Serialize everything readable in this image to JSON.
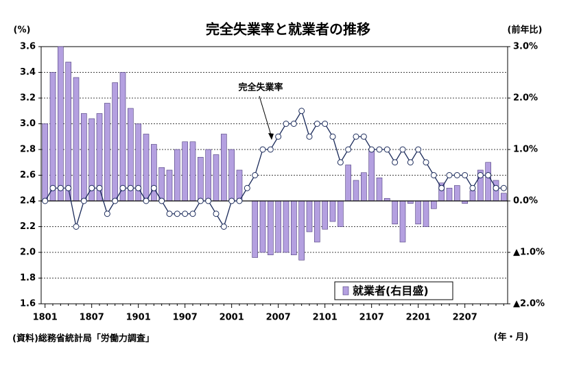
{
  "chart_data": {
    "type": "bar-line",
    "title": "完全失業率と就業者の推移",
    "ylabel": "(%)",
    "y2label": "(前年比)",
    "xlabel": "(年・月)",
    "source": "(資料)総務省統計局「労働力調査」",
    "categories": [
      "1801",
      null,
      null,
      null,
      null,
      null,
      "1807",
      null,
      null,
      null,
      null,
      null,
      "1901",
      null,
      null,
      null,
      null,
      null,
      "1907",
      null,
      null,
      null,
      null,
      null,
      "2001",
      null,
      null,
      null,
      null,
      null,
      "2007",
      null,
      null,
      null,
      null,
      null,
      "2101",
      null,
      null,
      null,
      null,
      null,
      "2107",
      null,
      null,
      null,
      null,
      null,
      "2201",
      null,
      null,
      null,
      null,
      null,
      "2207",
      null,
      null,
      null,
      null,
      null
    ],
    "series": [
      {
        "name": "就業者(右目盛)",
        "type": "bar",
        "axis": "y2",
        "color": "#b4a0e0",
        "values": [
          1.5,
          2.5,
          3.0,
          2.7,
          2.4,
          1.7,
          1.6,
          1.7,
          1.9,
          2.3,
          2.5,
          1.8,
          1.5,
          1.3,
          1.1,
          0.65,
          0.6,
          1.0,
          1.15,
          1.15,
          0.85,
          1.0,
          0.9,
          1.3,
          1.0,
          0.6,
          0,
          -1.1,
          -1.0,
          -1.05,
          -1.0,
          -1.0,
          -1.05,
          -1.15,
          -0.6,
          -0.8,
          -0.55,
          -0.4,
          -0.5,
          0.7,
          0.4,
          0.55,
          1.0,
          0.45,
          0.05,
          -0.45,
          -0.8,
          -0.05,
          -0.45,
          -0.5,
          -0.15,
          0.35,
          0.25,
          0.3,
          -0.05,
          0.2,
          0.6,
          0.75,
          0.4,
          0.15
        ]
      },
      {
        "name": "完全失業率",
        "type": "line",
        "color": "#1a2a5a",
        "values": [
          2.4,
          2.5,
          2.5,
          2.5,
          2.2,
          2.4,
          2.5,
          2.5,
          2.3,
          2.4,
          2.5,
          2.5,
          2.5,
          2.4,
          2.5,
          2.4,
          2.3,
          2.3,
          2.3,
          2.3,
          2.4,
          2.4,
          2.3,
          2.2,
          2.4,
          2.4,
          2.5,
          2.6,
          2.8,
          2.8,
          2.9,
          3.0,
          3.0,
          3.1,
          2.9,
          3.0,
          3.0,
          2.9,
          2.7,
          2.8,
          2.9,
          2.9,
          2.8,
          2.8,
          2.8,
          2.7,
          2.8,
          2.7,
          2.8,
          2.7,
          2.6,
          2.5,
          2.6,
          2.6,
          2.6,
          2.5,
          2.6,
          2.6,
          2.5,
          2.5
        ]
      }
    ],
    "ylim": [
      1.6,
      3.6
    ],
    "yticks": [
      1.6,
      1.8,
      {
        "value": 2,
        "label": "2.0"
      },
      2.2,
      2.4,
      2.6,
      2.8,
      {
        "value": 3,
        "label": "3.0"
      },
      3.2,
      3.4,
      3.6
    ],
    "y2lim": [
      -2,
      3
    ],
    "y2ticks": [
      {
        "value": 3,
        "label": "3.0%"
      },
      {
        "value": 2,
        "label": "2.0%"
      },
      {
        "value": 1,
        "label": "1.0%"
      },
      {
        "value": 0,
        "label": "0.0%"
      },
      {
        "value": -1,
        "label": "▲1.0%"
      },
      {
        "value": -2,
        "label": "▲2.0%"
      }
    ],
    "grid": true,
    "legend": "lower right"
  }
}
